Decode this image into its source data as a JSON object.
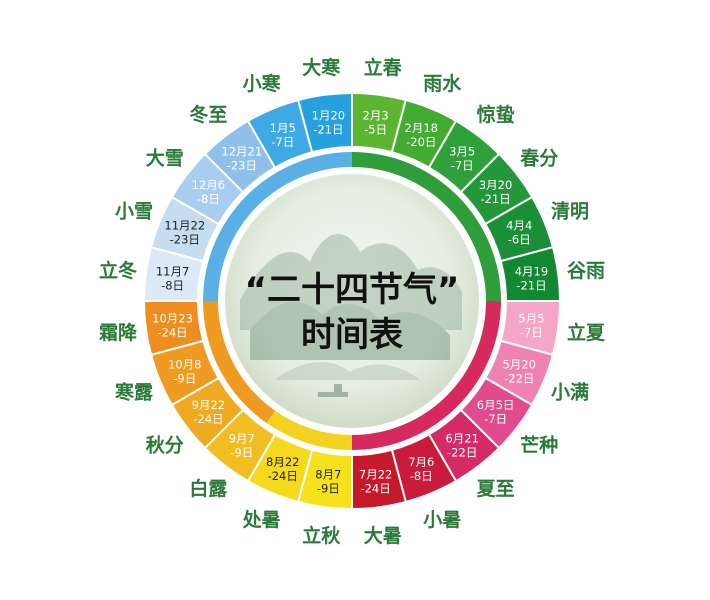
{
  "title": {
    "line1": "“二十四节气”",
    "line2": "时间表"
  },
  "terms": [
    {
      "name": "立春",
      "date1": "2月3",
      "date2": "-5日",
      "color": "#5cb531",
      "text": "#ffffff"
    },
    {
      "name": "雨水",
      "date1": "2月18",
      "date2": "-20日",
      "color": "#42ab32",
      "text": "#ffffff"
    },
    {
      "name": "惊蛰",
      "date1": "3月5",
      "date2": "-7日",
      "color": "#2fa13a",
      "text": "#ffffff"
    },
    {
      "name": "春分",
      "date1": "3月20",
      "date2": "-21日",
      "color": "#23983b",
      "text": "#ffffff"
    },
    {
      "name": "清明",
      "date1": "4月4",
      "date2": "-6日",
      "color": "#1b8f38",
      "text": "#ffffff"
    },
    {
      "name": "谷雨",
      "date1": "4月19",
      "date2": "-21日",
      "color": "#138832",
      "text": "#ffffff"
    },
    {
      "name": "立夏",
      "date1": "5月5",
      "date2": "-7日",
      "color": "#f3a6c6",
      "text": "#ffffff"
    },
    {
      "name": "小满",
      "date1": "5月20",
      "date2": "-22日",
      "color": "#ee82b0",
      "text": "#ffffff"
    },
    {
      "name": "芒种",
      "date1": "6月5日",
      "date2": "-7日",
      "color": "#e14b8d",
      "text": "#ffffff"
    },
    {
      "name": "夏至",
      "date1": "6月21",
      "date2": "-22日",
      "color": "#d42a66",
      "text": "#ffffff"
    },
    {
      "name": "小暑",
      "date1": "7月6",
      "date2": "-8日",
      "color": "#c91c3d",
      "text": "#ffffff"
    },
    {
      "name": "大暑",
      "date1": "7月22",
      "date2": "-24日",
      "color": "#c61a2c",
      "text": "#ffffff"
    },
    {
      "name": "立秋",
      "date1": "8月7",
      "date2": "-9日",
      "color": "#f6e11b",
      "text": "#222222"
    },
    {
      "name": "处暑",
      "date1": "8月22",
      "date2": "-24日",
      "color": "#f4d91c",
      "text": "#222222"
    },
    {
      "name": "白露",
      "date1": "9月7",
      "date2": "-9日",
      "color": "#f1bd21",
      "text": "#ffffff"
    },
    {
      "name": "秋分",
      "date1": "9月22",
      "date2": "-24日",
      "color": "#f0aa22",
      "text": "#ffffff"
    },
    {
      "name": "寒露",
      "date1": "10月8",
      "date2": "-9日",
      "color": "#ef9b22",
      "text": "#ffffff"
    },
    {
      "name": "霜降",
      "date1": "10月23",
      "date2": "-24日",
      "color": "#ee8d20",
      "text": "#ffffff"
    },
    {
      "name": "立冬",
      "date1": "11月7",
      "date2": "-8日",
      "color": "#dce9f6",
      "text": "#222222"
    },
    {
      "name": "小雪",
      "date1": "11月22",
      "date2": "-23日",
      "color": "#c6dcf1",
      "text": "#222222"
    },
    {
      "name": "大雪",
      "date1": "12月6",
      "date2": "-8日",
      "color": "#a8cdee",
      "text": "#ffffff"
    },
    {
      "name": "冬至",
      "date1": "12月21",
      "date2": "-23日",
      "color": "#8fc0ea",
      "text": "#ffffff"
    },
    {
      "name": "小寒",
      "date1": "1月5",
      "date2": "-7日",
      "color": "#3ea9e4",
      "text": "#ffffff"
    },
    {
      "name": "大寒",
      "date1": "1月20",
      "date2": "-21日",
      "color": "#27a0e0",
      "text": "#ffffff"
    }
  ],
  "season_colors": {
    "spring": "#2f9e3a",
    "summer": "#d62a5e",
    "autumn_early": "#f3d21f",
    "autumn": "#ef9b22",
    "winter": "#5ab0e6"
  },
  "term_label_color": "#2a7a3a"
}
